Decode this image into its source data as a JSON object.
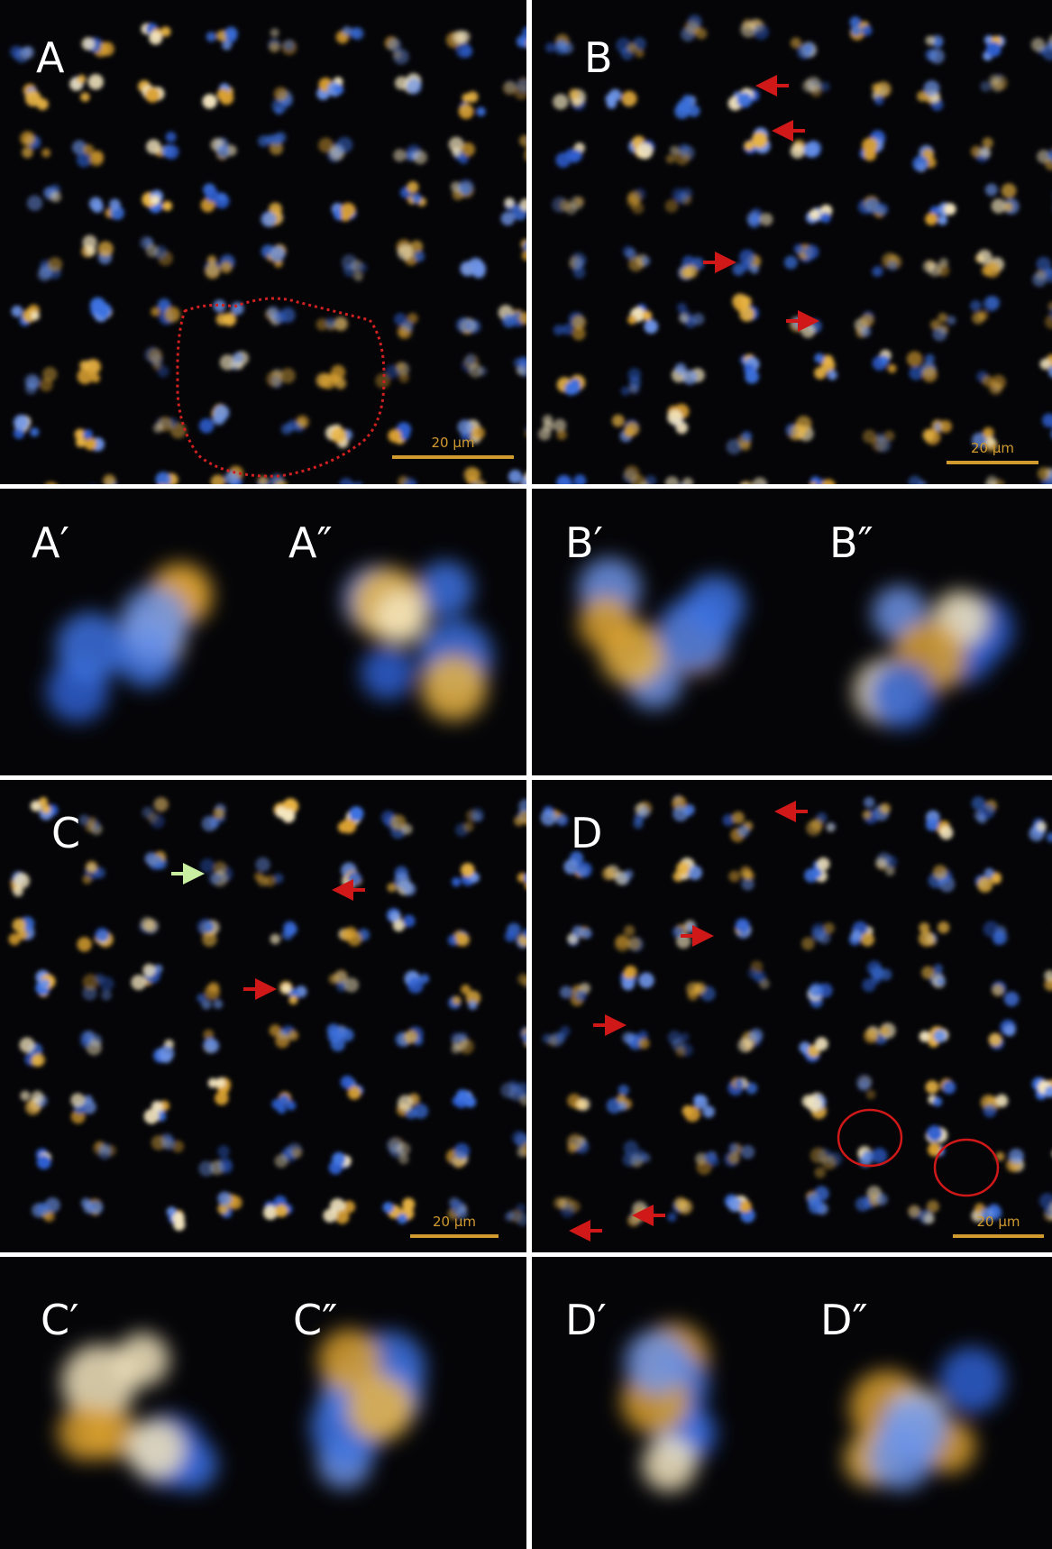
{
  "panels": [
    {
      "label": "A",
      "scale_bar": "20 µm"
    },
    {
      "label": "B",
      "scale_bar": "20 µm"
    },
    {
      "label": "A′"
    },
    {
      "label": "A″"
    },
    {
      "label": "B′"
    },
    {
      "label": "B″"
    },
    {
      "label": "C",
      "scale_bar": "20 µm"
    },
    {
      "label": "D",
      "scale_bar": "20 µm"
    },
    {
      "label": "C′"
    },
    {
      "label": "C″"
    },
    {
      "label": "D′"
    },
    {
      "label": "D″"
    }
  ]
}
